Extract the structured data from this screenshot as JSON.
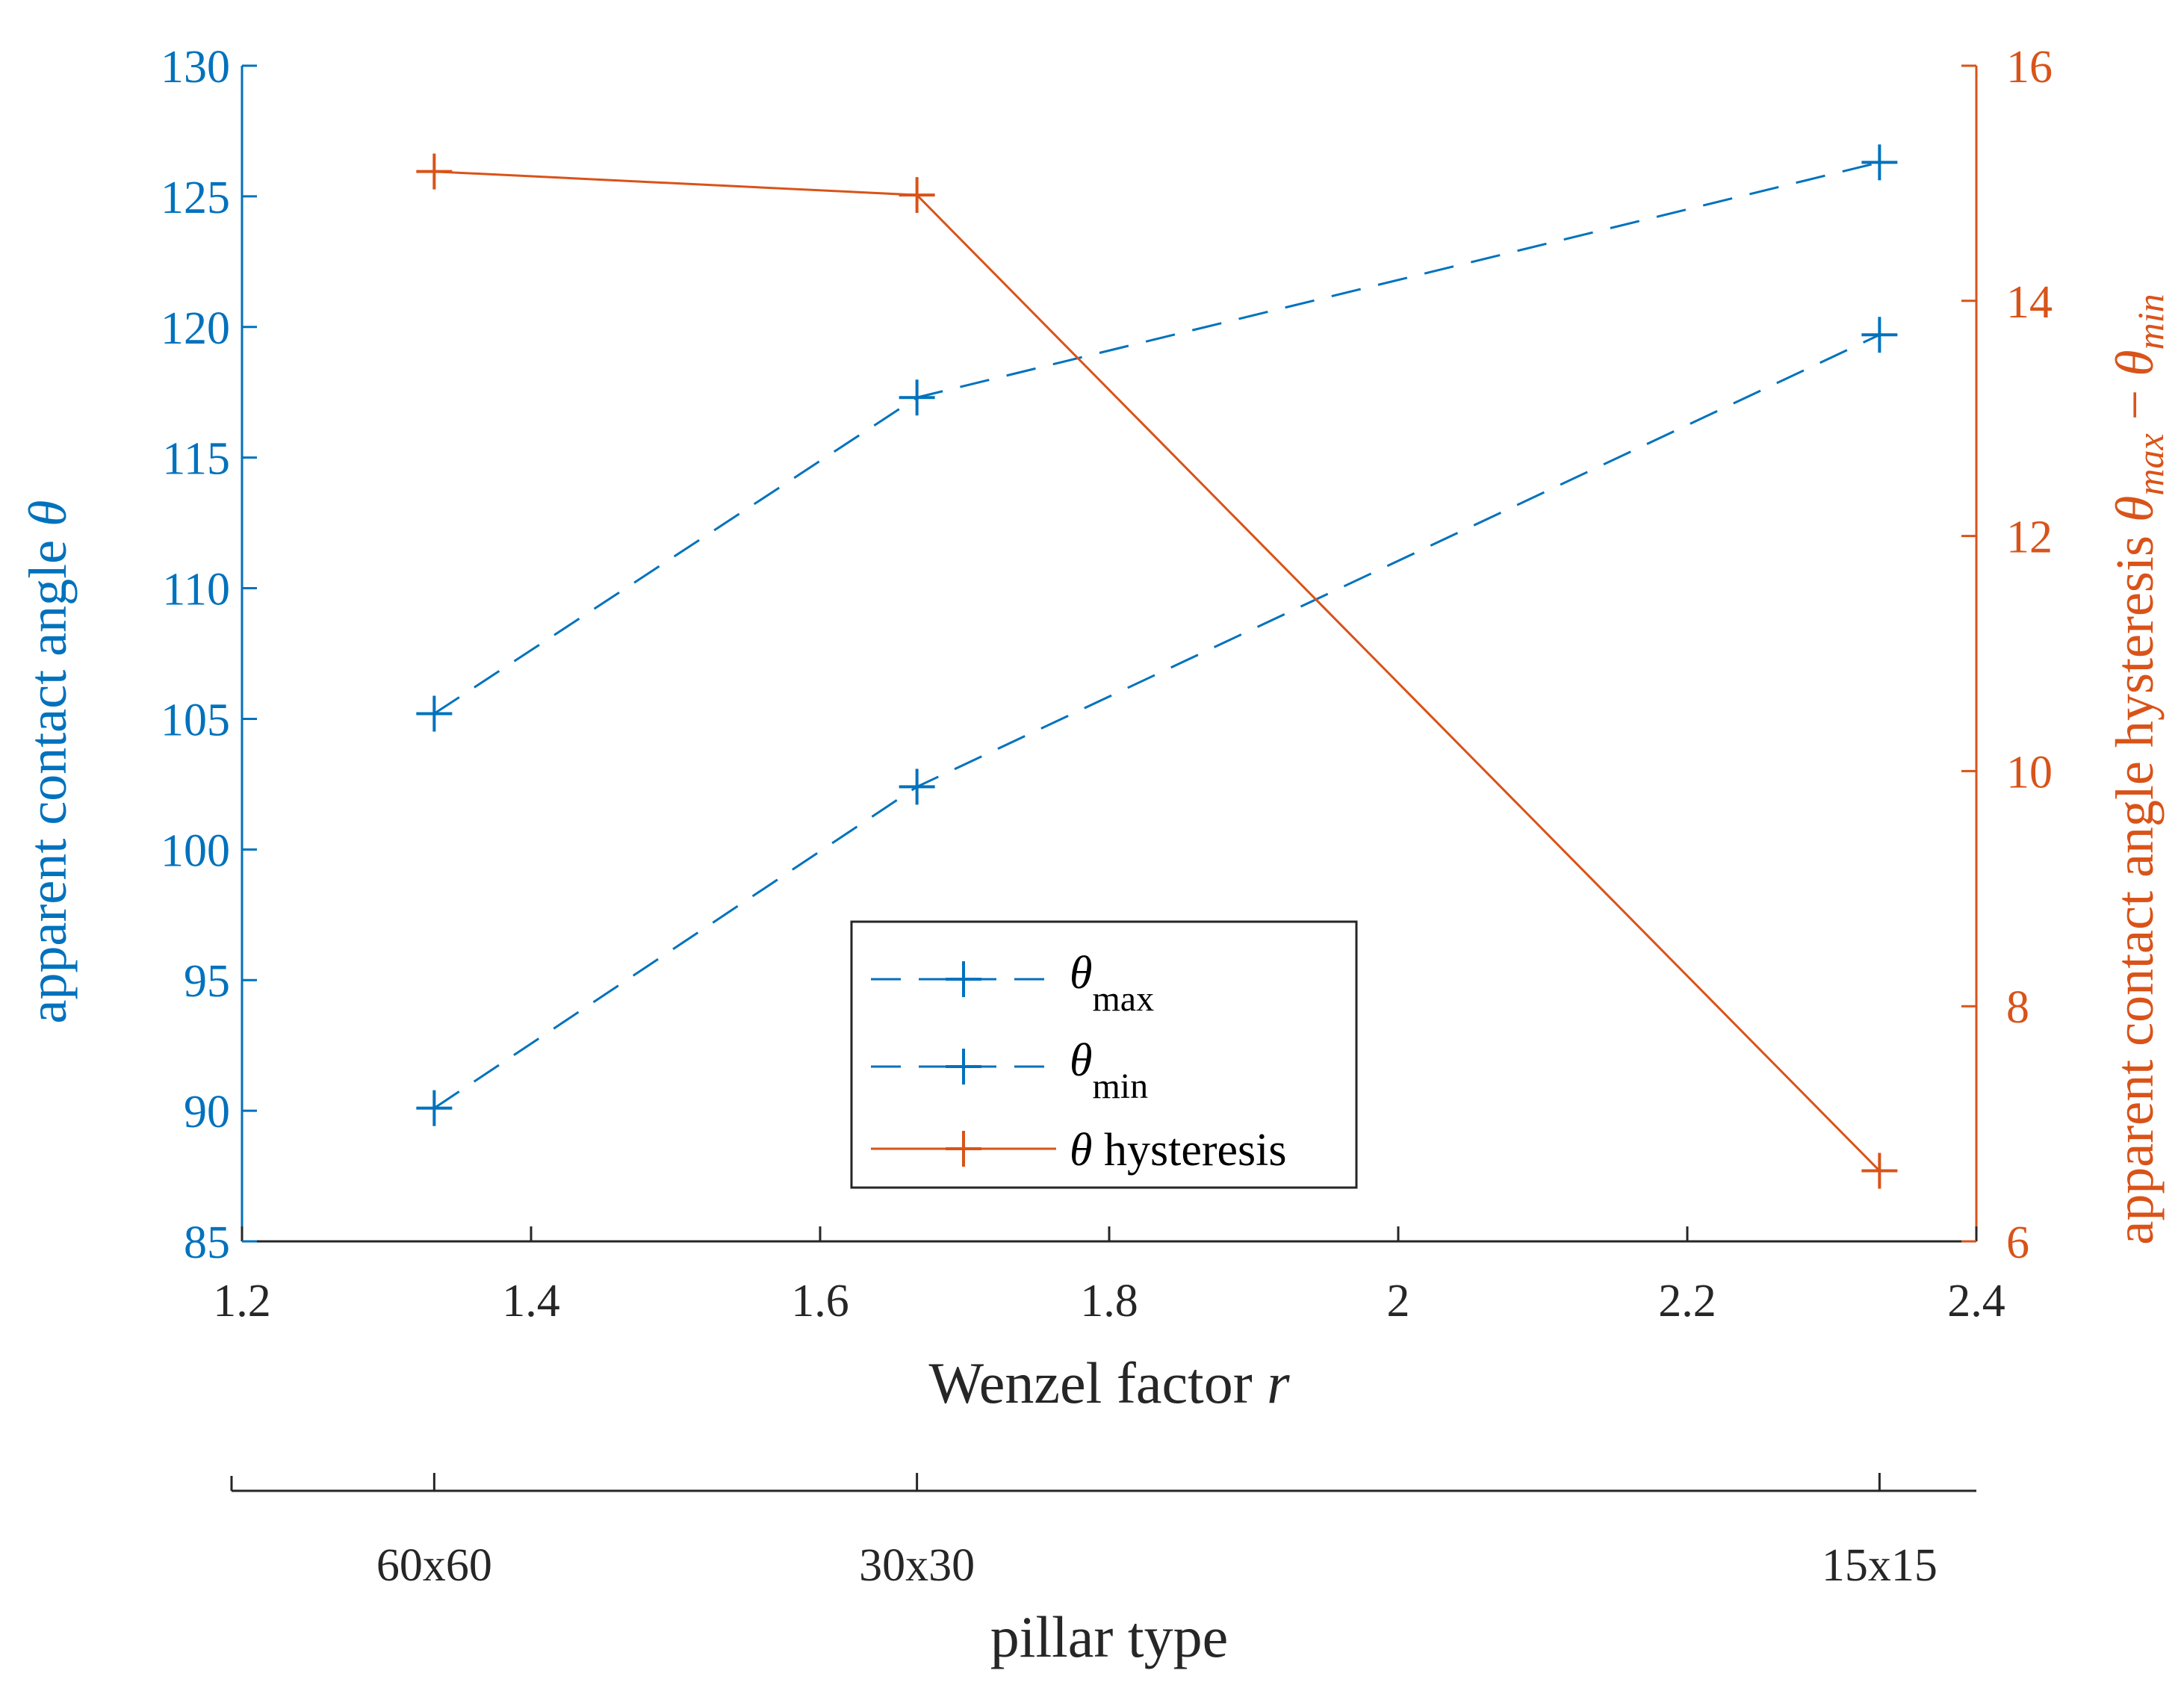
{
  "chart_data": {
    "type": "line",
    "x_axis": {
      "label_text": "Wenzel factor ",
      "label_var": "r",
      "range": [
        1.2,
        2.4
      ],
      "ticks": [
        "1.2",
        "1.4",
        "1.6",
        "1.8",
        "2",
        "2.2",
        "2.4"
      ]
    },
    "y_left": {
      "label_text": "apparent contact angle ",
      "label_var": "θ",
      "range": [
        85,
        130
      ],
      "ticks": [
        "85",
        "90",
        "95",
        "100",
        "105",
        "110",
        "115",
        "120",
        "125",
        "130"
      ],
      "color": "#0072BD"
    },
    "y_right": {
      "label_text": "apparent contact angle hysteresis ",
      "label_var1": "θ",
      "label_sub1": "max",
      "label_minus": " − ",
      "label_var2": "θ",
      "label_sub2": "min",
      "range": [
        6,
        16
      ],
      "ticks": [
        "6",
        "8",
        "10",
        "12",
        "14",
        "16"
      ],
      "color": "#D95319"
    },
    "secondary_x": {
      "label": "pillar type",
      "categories": [
        "60x60",
        "30x30",
        "15x15"
      ],
      "positions": [
        1.333,
        1.667,
        2.333
      ]
    },
    "x": [
      1.333,
      1.667,
      2.333
    ],
    "series": [
      {
        "name": "θ max",
        "legend_var": "θ",
        "legend_sub": "max",
        "axis": "left",
        "values": [
          105.2,
          117.3,
          126.3
        ],
        "color": "#0072BD",
        "dashed": true
      },
      {
        "name": "θ min",
        "legend_var": "θ",
        "legend_sub": "min",
        "axis": "left",
        "values": [
          90.1,
          102.4,
          119.7
        ],
        "color": "#0072BD",
        "dashed": true
      },
      {
        "name": "θ hysteresis",
        "legend_var": "θ",
        "legend_text": " hysteresis",
        "axis": "right",
        "values": [
          15.1,
          14.9,
          6.6
        ],
        "color": "#D95319",
        "dashed": false
      }
    ]
  }
}
